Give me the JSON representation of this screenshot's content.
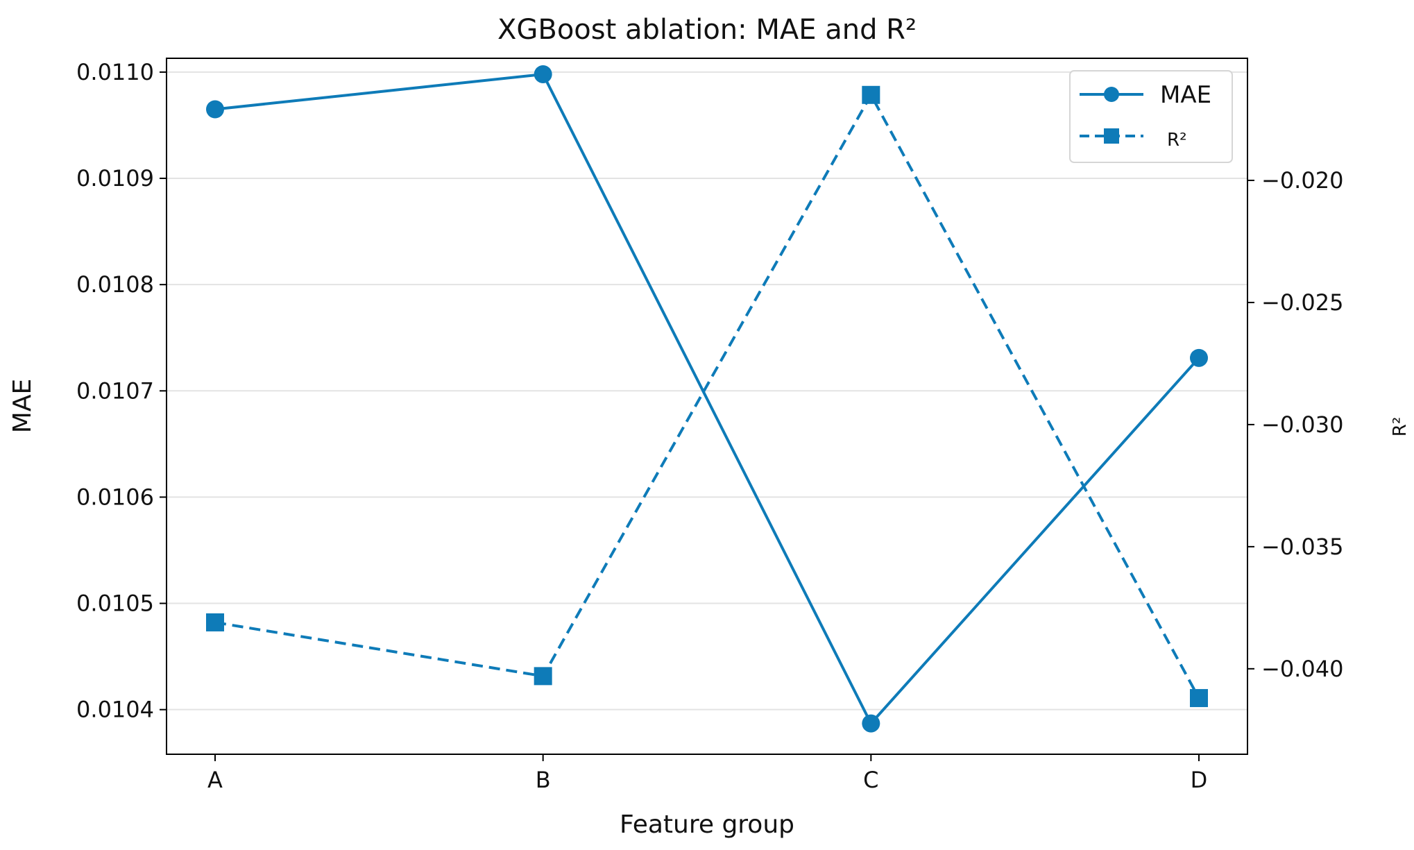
{
  "chart_data": {
    "type": "line",
    "title": "XGBoost ablation: MAE and R²",
    "xlabel": "Feature group",
    "ylabel": "MAE",
    "y2label": "R²",
    "categories": [
      "A",
      "B",
      "C",
      "D"
    ],
    "series": [
      {
        "name": "MAE",
        "axis": "left",
        "marker": "circle",
        "linestyle": "solid",
        "color": "#0e7bb8",
        "values": [
          0.010965,
          0.010998,
          0.010387,
          0.010731
        ]
      },
      {
        "name": "R²",
        "axis": "right",
        "marker": "square",
        "linestyle": "dashed",
        "color": "#0e7bb8",
        "values": [
          -0.0381,
          -0.0403,
          -0.0165,
          -0.0412
        ]
      }
    ],
    "ylim": [
      0.010358,
      0.011013
    ],
    "yticks": [
      0.0104,
      0.0105,
      0.0106,
      0.0107,
      0.0108,
      0.0109,
      0.011
    ],
    "ytick_labels": [
      "0.0104",
      "0.0105",
      "0.0106",
      "0.0107",
      "0.0108",
      "0.0109",
      "0.0110"
    ],
    "y2lim": [
      -0.0435,
      -0.015
    ],
    "y2ticks": [
      -0.04,
      -0.035,
      -0.03,
      -0.025,
      -0.02
    ],
    "y2tick_labels": [
      "−0.040",
      "−0.035",
      "−0.030",
      "−0.025",
      "−0.020"
    ],
    "grid": "horizontal",
    "legend": "top-right"
  }
}
